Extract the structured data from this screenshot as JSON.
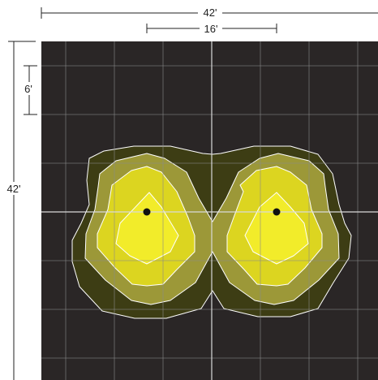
{
  "dimensions": {
    "overall_width": "42'",
    "fixture_spacing": "16'",
    "grid_spacing": "6'",
    "overall_height": "42'"
  },
  "colors": {
    "background": "#2a2626",
    "grid_line": "#8a8a8a",
    "center_line": "#d9d9d9",
    "contour_outline": "#ffffff",
    "contour_levels": [
      "#3d3d14",
      "#9c9838",
      "#dcd520",
      "#f2ec2a"
    ],
    "fixture_marker": "#111111",
    "dimension_line": "#222222"
  },
  "fixtures": [
    {
      "name": "left-fixture"
    },
    {
      "name": "right-fixture"
    }
  ]
}
